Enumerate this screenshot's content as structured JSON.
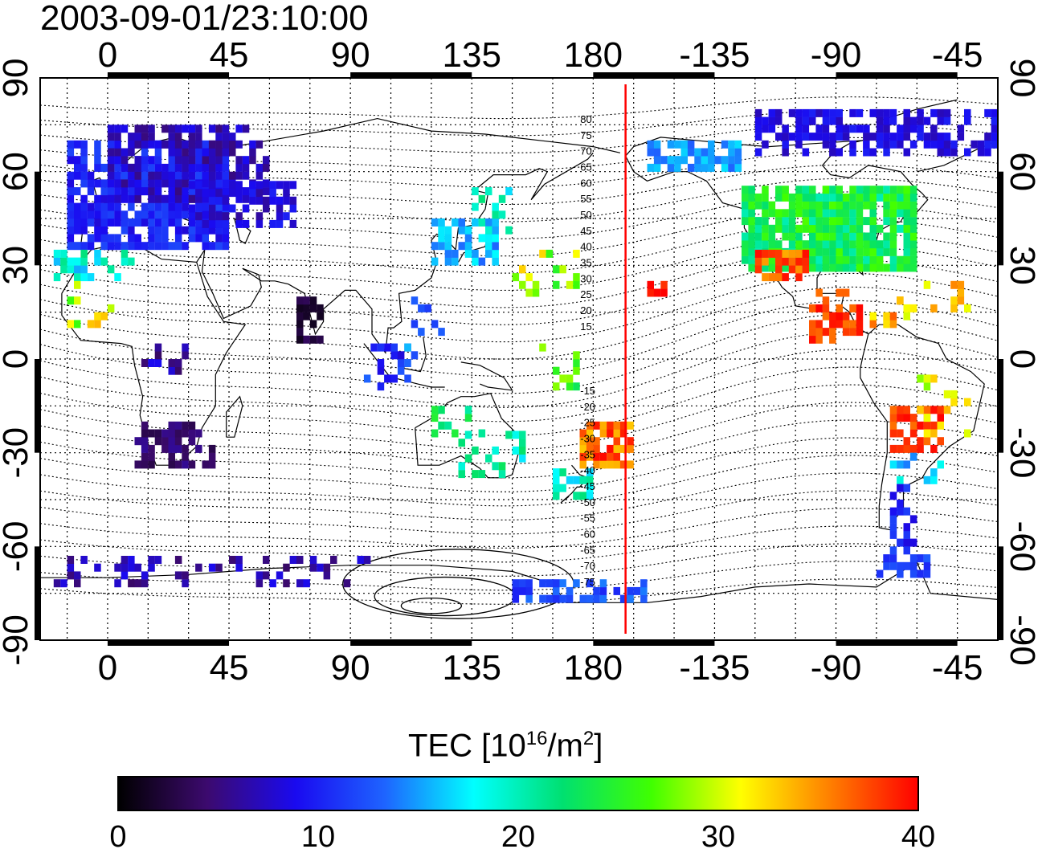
{
  "title": "2003-09-01/23:10:00",
  "map": {
    "x_ticks": [
      "0",
      "45",
      "90",
      "135",
      "180",
      "-135",
      "-90",
      "-45"
    ],
    "y_ticks": [
      "90",
      "60",
      "30",
      "0",
      "-30",
      "-60",
      "-90"
    ],
    "x_tick_lons": [
      0,
      45,
      90,
      135,
      180,
      225,
      270,
      315
    ],
    "y_tick_lats": [
      90,
      60,
      30,
      0,
      -30,
      -60,
      -90
    ],
    "lon_range": [
      -25,
      330
    ],
    "lat_range": [
      -90,
      90
    ],
    "grid": true,
    "terminator_lon": 192,
    "terminator_color": "#ff0000",
    "magnetic_latitude_labels": [
      "80",
      "75",
      "70",
      "65",
      "60",
      "55",
      "50",
      "45",
      "40",
      "35",
      "30",
      "25",
      "20",
      "15",
      "-15",
      "-20",
      "-25",
      "-30",
      "-35",
      "-40",
      "-45",
      "-50",
      "-55",
      "-60",
      "-65",
      "-70",
      "-75"
    ]
  },
  "colorbar": {
    "label": "TEC  [10",
    "label_exp1": "16",
    "label_mid": "/m",
    "label_exp2": "2",
    "label_end": "]",
    "ticks": [
      "0",
      "10",
      "20",
      "30",
      "40"
    ],
    "range": [
      0,
      40
    ],
    "colors": [
      "#000000",
      "#3c0a6e",
      "#1a0af0",
      "#1e64ff",
      "#00ffff",
      "#00e070",
      "#40ff00",
      "#ffff00",
      "#ff8000",
      "#ff0000"
    ]
  }
}
